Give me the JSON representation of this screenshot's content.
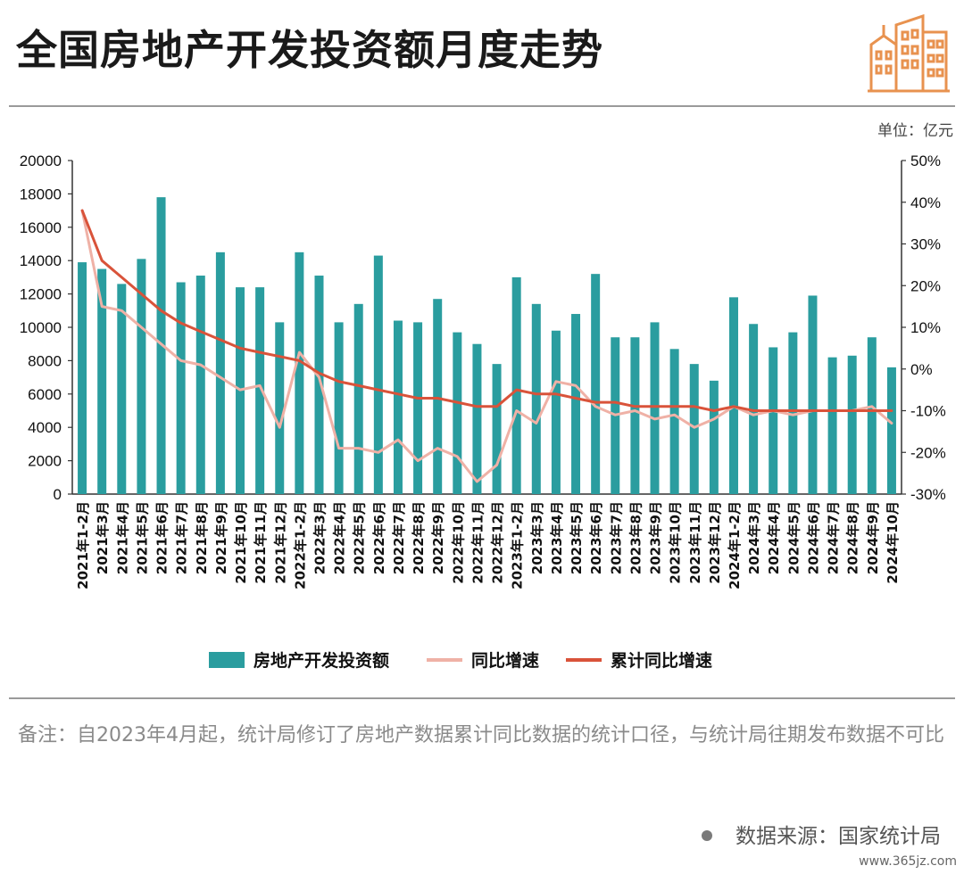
{
  "header": {
    "title": "全国房地产开发投资额月度走势"
  },
  "unit_label": "单位：亿元",
  "note": "备注：自2023年4月起，统计局修订了房地产数据累计同比数据的统计口径，与统计局往期发布数据不可比",
  "source": "数据来源：国家统计局",
  "watermark": "www.365jz.com",
  "colors": {
    "bar": "#2a9d9f",
    "yoy_line": "#efb1a6",
    "cum_line": "#d9533a",
    "logo": "#e8924f"
  },
  "chart_data": {
    "type": "bar",
    "categories": [
      "2021年1-2月",
      "2021年3月",
      "2021年4月",
      "2021年5月",
      "2021年6月",
      "2021年7月",
      "2021年8月",
      "2021年9月",
      "2021年10月",
      "2021年11月",
      "2021年12月",
      "2022年1-2月",
      "2022年3月",
      "2022年4月",
      "2022年5月",
      "2022年6月",
      "2022年7月",
      "2022年8月",
      "2022年9月",
      "2022年10月",
      "2022年11月",
      "2022年12月",
      "2023年1-2月",
      "2023年3月",
      "2023年4月",
      "2023年5月",
      "2023年6月",
      "2023年7月",
      "2023年8月",
      "2023年9月",
      "2023年10月",
      "2023年11月",
      "2023年12月",
      "2024年1-2月",
      "2024年3月",
      "2024年4月",
      "2024年5月",
      "2024年6月",
      "2024年7月",
      "2024年8月",
      "2024年9月",
      "2024年10月"
    ],
    "series": [
      {
        "name": "房地产开发投资额",
        "type": "bar",
        "axis": "left",
        "values": [
          13900,
          13500,
          12600,
          14100,
          17800,
          12700,
          13100,
          14500,
          12400,
          12400,
          10300,
          14500,
          13100,
          10300,
          11400,
          14300,
          10400,
          10300,
          11700,
          9700,
          9000,
          7800,
          13000,
          11400,
          9800,
          10800,
          13200,
          9400,
          9400,
          10300,
          8700,
          7800,
          6800,
          11800,
          10200,
          8800,
          9700,
          11900,
          8200,
          8300,
          9400,
          7600
        ]
      },
      {
        "name": "同比增速",
        "type": "line",
        "axis": "right",
        "values": [
          38,
          15,
          14,
          10,
          6,
          2,
          1,
          -2,
          -5,
          -4,
          -14,
          4,
          -2,
          -19,
          -19,
          -20,
          -17,
          -22,
          -19,
          -21,
          -27,
          -23,
          -10,
          -13,
          -3,
          -4,
          -9,
          -11,
          -10,
          -12,
          -11,
          -14,
          -12,
          -9,
          -11,
          -10,
          -11,
          -10,
          -10,
          -10,
          -9,
          -13
        ]
      },
      {
        "name": "累计同比增速",
        "type": "line",
        "axis": "right",
        "values": [
          38,
          26,
          22,
          18,
          14,
          11,
          9,
          7,
          5,
          4,
          3,
          2,
          -1,
          -3,
          -4,
          -5,
          -6,
          -7,
          -7,
          -8,
          -9,
          -9,
          -5,
          -6,
          -6,
          -7,
          -8,
          -8,
          -9,
          -9,
          -9,
          -9,
          -10,
          -9,
          -10,
          -10,
          -10,
          -10,
          -10,
          -10,
          -10,
          -10
        ]
      }
    ],
    "y_left": {
      "min": 0,
      "max": 20000,
      "ticks": [
        "0",
        "2000",
        "4000",
        "6000",
        "8000",
        "10000",
        "12000",
        "14000",
        "16000",
        "18000",
        "20000"
      ]
    },
    "y_right": {
      "min": -30,
      "max": 50,
      "ticks": [
        "-30%",
        "-20%",
        "-10%",
        "0%",
        "10%",
        "20%",
        "30%",
        "40%",
        "50%"
      ]
    },
    "legend_position": "bottom",
    "grid": false
  }
}
